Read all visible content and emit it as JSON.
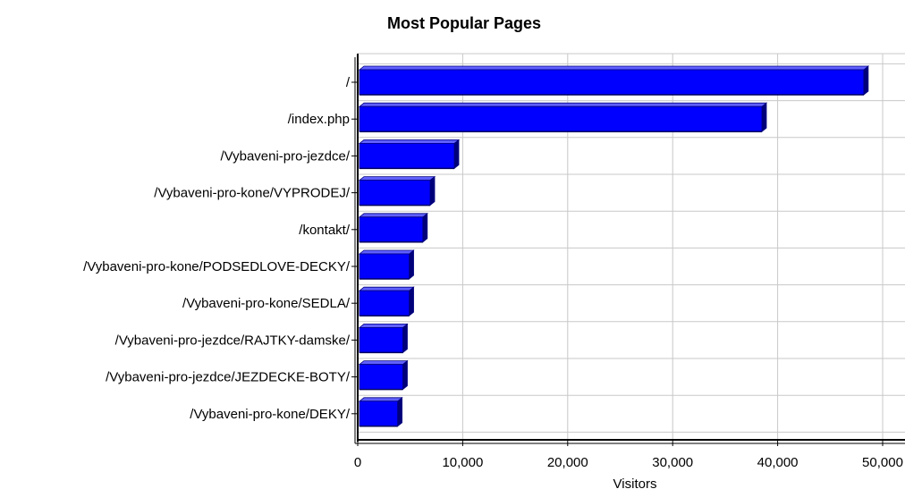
{
  "chart_data": {
    "type": "bar",
    "orientation": "horizontal",
    "title": "Most Popular Pages",
    "xlabel": "Visitors",
    "ylabel": "",
    "categories": [
      "/",
      "/index.php",
      "/Vybaveni-pro-jezdce/",
      "/Vybaveni-pro-kone/VYPRODEJ/",
      "/kontakt/",
      "/Vybaveni-pro-kone/PODSEDLOVE-DECKY/",
      "/Vybaveni-pro-kone/SEDLA/",
      "/Vybaveni-pro-jezdce/RAJTKY-damske/",
      "/Vybaveni-pro-jezdce/JEZDECKE-BOTY/",
      "/Vybaveni-pro-kone/DEKY/"
    ],
    "values": [
      48200,
      38500,
      9200,
      6900,
      6200,
      4900,
      4900,
      4300,
      4300,
      3800
    ],
    "xlim": [
      0,
      52000
    ],
    "ticks": [
      0,
      10000,
      20000,
      30000,
      40000,
      50000
    ],
    "tick_labels": [
      "0",
      "10,000",
      "20,000",
      "30,000",
      "40,000",
      "50,000"
    ],
    "grid": true,
    "colors": {
      "bar": "#0000ff",
      "bar_top": "#6060ff",
      "bar_side": "#00007a",
      "bar_edge": "#000080",
      "grid": "#c8c8c8"
    }
  }
}
